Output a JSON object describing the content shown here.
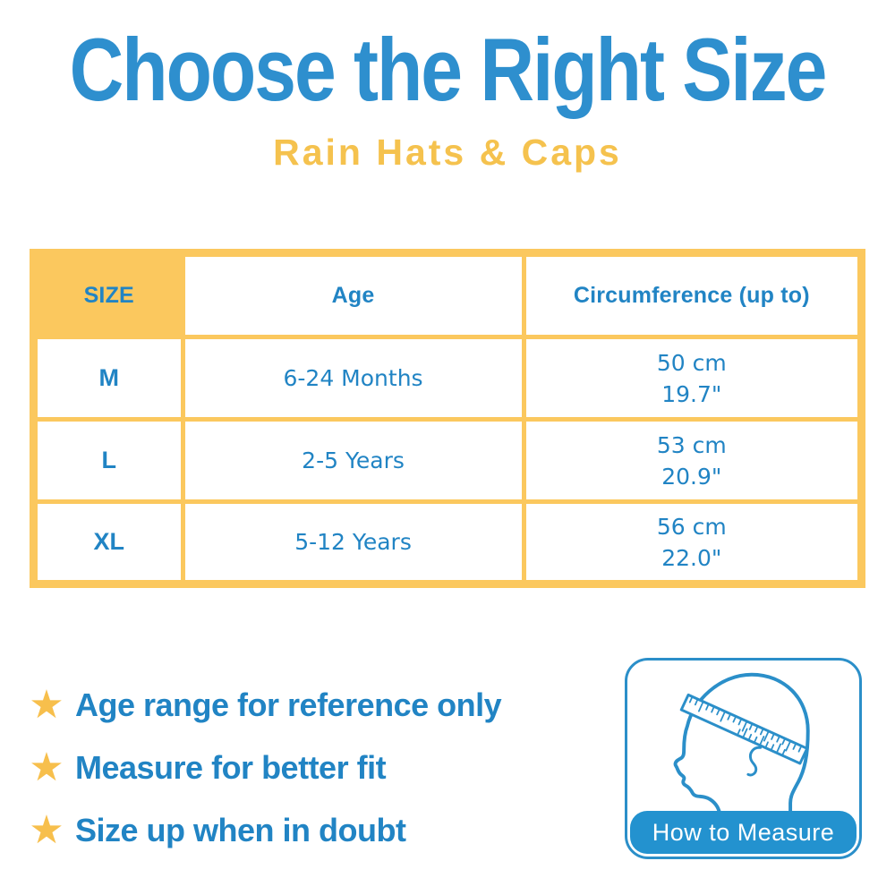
{
  "header": {
    "title": "Choose the Right Size",
    "subtitle": "Rain Hats & Caps"
  },
  "colors": {
    "title_blue": "#2e8fce",
    "text_blue": "#2184c4",
    "table_yellow": "#fbc85e",
    "subtitle_yellow": "#f5c24e",
    "star_yellow": "#f7bf4c",
    "bar_blue": "#2392cf",
    "illustration_blue": "#2b8fc9"
  },
  "icons": {
    "star": "★"
  },
  "size_table": {
    "columns": [
      "SIZE",
      "Age",
      "Circumference (up to)"
    ],
    "rows": [
      {
        "size": "M",
        "age": "6-24 Months",
        "cm": "50 cm",
        "in": "19.7\""
      },
      {
        "size": "L",
        "age": "2-5 Years",
        "cm": "53 cm",
        "in": "20.9\""
      },
      {
        "size": "XL",
        "age": "5-12 Years",
        "cm": "56 cm",
        "in": "22.0\""
      }
    ]
  },
  "notes": [
    {
      "icon": "star-icon",
      "text": "Age range for reference only"
    },
    {
      "icon": "star-icon",
      "text": "Measure for better fit"
    },
    {
      "icon": "star-icon",
      "text": "Size up when in doubt"
    }
  ],
  "measure_card": {
    "label": "How to Measure",
    "illustration": "child-head-profile-with-measuring-tape"
  }
}
